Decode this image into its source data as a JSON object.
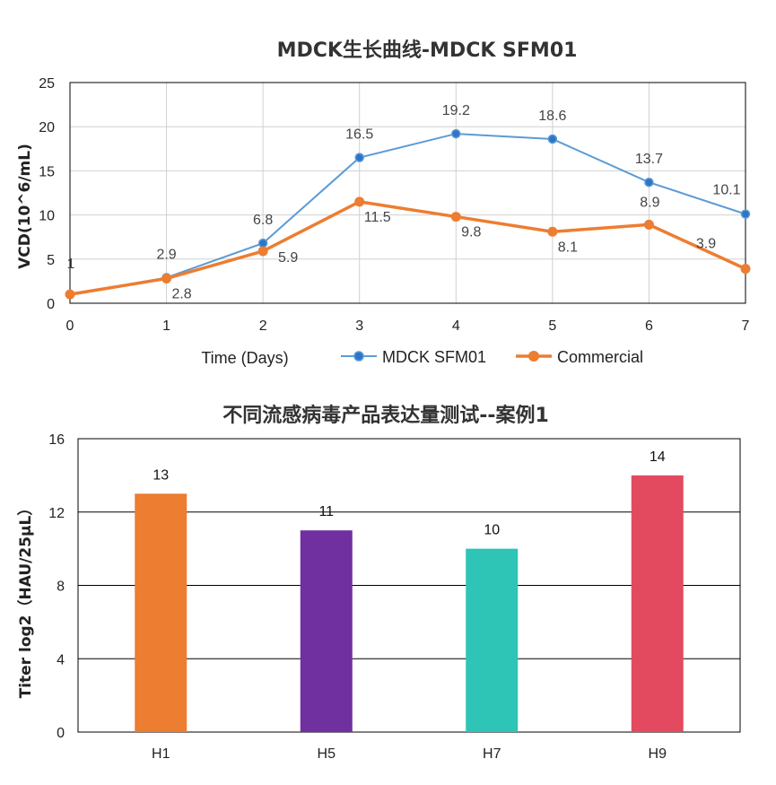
{
  "chart_data": [
    {
      "type": "line",
      "title": "MDCK生长曲线-MDCK SFM01",
      "xlabel": "Time (Days)",
      "ylabel": "VCD(10^6/mL)",
      "x": [
        0,
        1,
        2,
        3,
        4,
        5,
        6,
        7
      ],
      "xlim": [
        0,
        7
      ],
      "ylim": [
        0,
        25
      ],
      "yticks": [
        0,
        5,
        10,
        15,
        20,
        25
      ],
      "grid": true,
      "legend": "bottom",
      "series": [
        {
          "name": "MDCK SFM01",
          "color": "#5B9BD5",
          "values": [
            1,
            2.9,
            6.8,
            16.5,
            19.2,
            18.6,
            13.7,
            10.1
          ],
          "labels": [
            "1",
            "2.9",
            "6.8",
            "16.5",
            "19.2",
            "18.6",
            "13.7",
            "10.1"
          ]
        },
        {
          "name": "Commercial",
          "color": "#ED7D31",
          "values": [
            1.0,
            2.8,
            5.9,
            11.5,
            9.8,
            8.1,
            8.9,
            3.9
          ],
          "labels": [
            "",
            "2.8",
            "5.9",
            "11.5",
            "9.8",
            "8.1",
            "8.9",
            "3.9"
          ]
        }
      ]
    },
    {
      "type": "bar",
      "title": "不同流感病毒产品表达量测试--案例1",
      "xlabel": "",
      "ylabel": "Titer log2（HAU/25μL）",
      "categories": [
        "H1",
        "H5",
        "H7",
        "H9"
      ],
      "values": [
        13,
        11,
        10,
        14
      ],
      "colors": [
        "#ED7D31",
        "#7030A0",
        "#2EC4B6",
        "#E34A5F"
      ],
      "ylim": [
        0,
        16
      ],
      "yticks": [
        0,
        4,
        8,
        12,
        16
      ],
      "grid": true
    }
  ]
}
